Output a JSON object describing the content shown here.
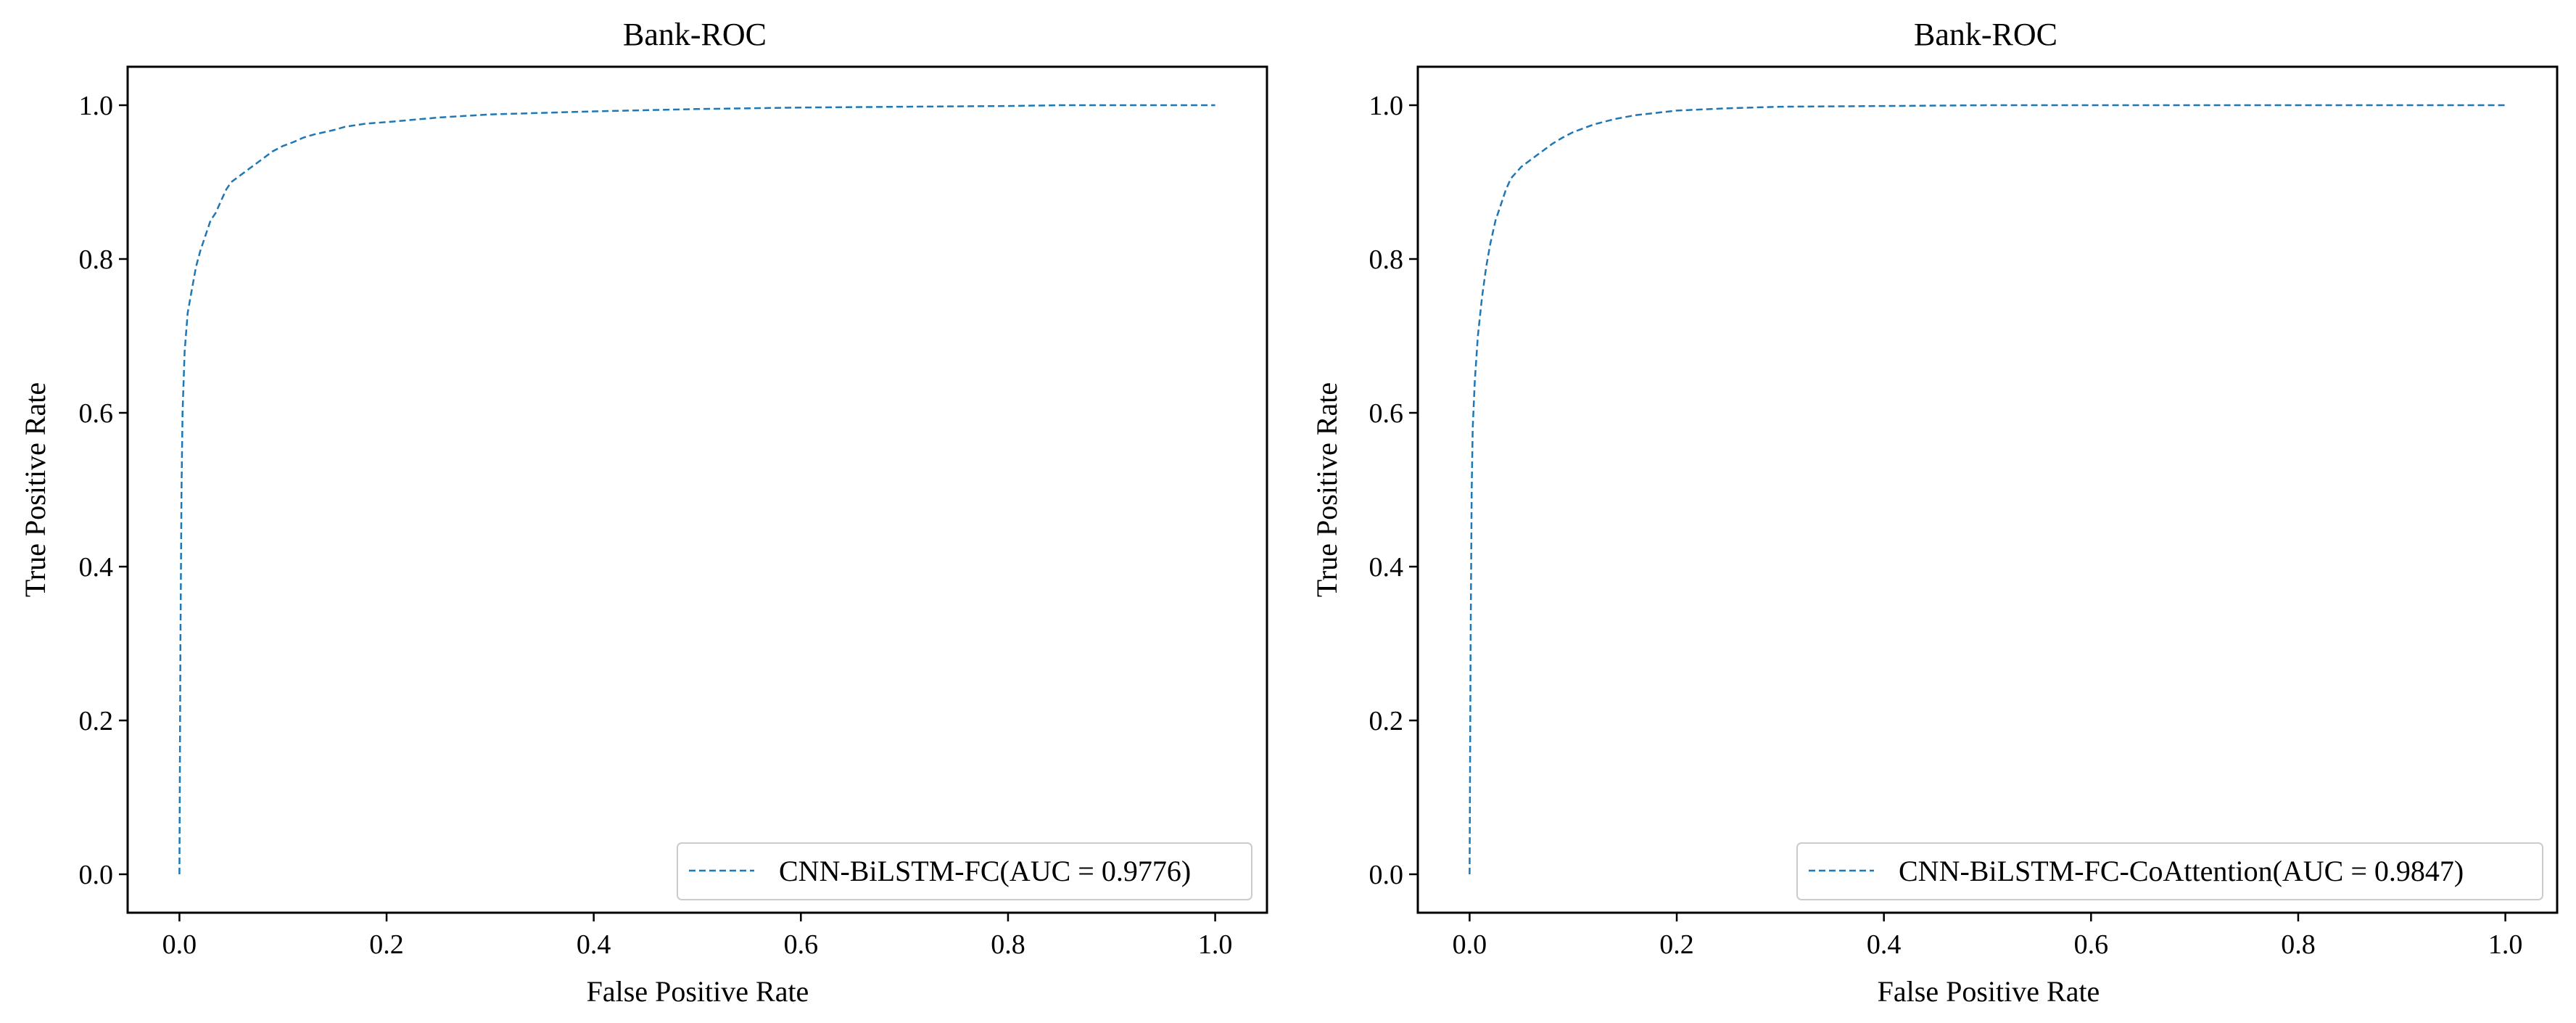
{
  "chart_data": [
    {
      "type": "line",
      "title": "Bank-ROC",
      "xlabel": "False Positive Rate",
      "ylabel": "True Positive Rate",
      "xlim": [
        -0.05,
        1.05
      ],
      "ylim": [
        -0.05,
        1.05
      ],
      "xticks": [
        "0.0",
        "0.2",
        "0.4",
        "0.6",
        "0.8",
        "1.0"
      ],
      "yticks": [
        "0.0",
        "0.2",
        "0.4",
        "0.6",
        "0.8",
        "1.0"
      ],
      "grid": false,
      "legend_position": "lower-right",
      "line_color": "#1f77b4",
      "line_style": "dashed",
      "series": [
        {
          "name": "CNN-BiLSTM-FC(AUC = 0.9776)",
          "x": [
            0.0,
            0.001,
            0.002,
            0.003,
            0.005,
            0.008,
            0.012,
            0.016,
            0.02,
            0.025,
            0.03,
            0.035,
            0.04,
            0.045,
            0.05,
            0.06,
            0.07,
            0.08,
            0.09,
            0.1,
            0.11,
            0.12,
            0.13,
            0.14,
            0.15,
            0.16,
            0.18,
            0.2,
            0.25,
            0.3,
            0.35,
            0.4,
            0.5,
            0.6,
            0.7,
            0.8,
            0.85,
            0.9,
            1.0
          ],
          "y": [
            0.0,
            0.3,
            0.5,
            0.6,
            0.68,
            0.73,
            0.76,
            0.79,
            0.81,
            0.83,
            0.85,
            0.86,
            0.875,
            0.89,
            0.9,
            0.91,
            0.92,
            0.93,
            0.94,
            0.947,
            0.952,
            0.958,
            0.962,
            0.965,
            0.968,
            0.972,
            0.976,
            0.978,
            0.984,
            0.988,
            0.99,
            0.992,
            0.995,
            0.997,
            0.998,
            0.999,
            1.0,
            1.0,
            1.0
          ]
        }
      ]
    },
    {
      "type": "line",
      "title": "Bank-ROC",
      "xlabel": "False Positive Rate",
      "ylabel": "True Positive Rate",
      "xlim": [
        -0.05,
        1.05
      ],
      "ylim": [
        -0.05,
        1.05
      ],
      "xticks": [
        "0.0",
        "0.2",
        "0.4",
        "0.6",
        "0.8",
        "1.0"
      ],
      "yticks": [
        "0.0",
        "0.2",
        "0.4",
        "0.6",
        "0.8",
        "1.0"
      ],
      "grid": false,
      "legend_position": "lower-right",
      "line_color": "#1f77b4",
      "line_style": "dashed",
      "series": [
        {
          "name": "CNN-BiLSTM-FC-CoAttention(AUC = 0.9847)",
          "x": [
            0.0,
            0.001,
            0.002,
            0.003,
            0.005,
            0.008,
            0.012,
            0.016,
            0.02,
            0.025,
            0.03,
            0.035,
            0.04,
            0.05,
            0.06,
            0.07,
            0.08,
            0.09,
            0.1,
            0.12,
            0.14,
            0.16,
            0.18,
            0.2,
            0.25,
            0.3,
            0.4,
            0.5,
            0.6,
            0.7,
            0.8,
            0.9,
            1.0
          ],
          "y": [
            0.0,
            0.3,
            0.5,
            0.58,
            0.64,
            0.7,
            0.75,
            0.79,
            0.82,
            0.85,
            0.87,
            0.89,
            0.905,
            0.92,
            0.93,
            0.94,
            0.95,
            0.958,
            0.965,
            0.975,
            0.982,
            0.987,
            0.99,
            0.993,
            0.996,
            0.998,
            0.999,
            1.0,
            1.0,
            1.0,
            1.0,
            1.0,
            1.0
          ]
        }
      ]
    }
  ]
}
